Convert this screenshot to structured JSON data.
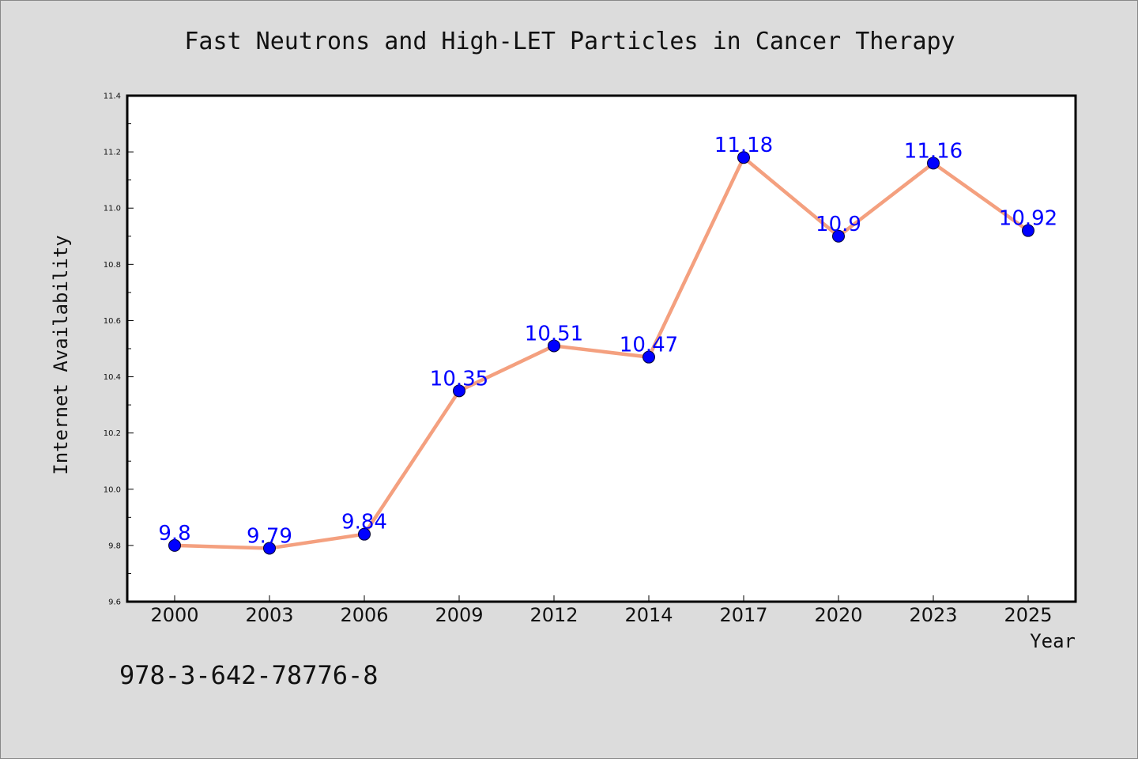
{
  "title": "Fast Neutrons and High-LET Particles in Cancer Therapy",
  "footnote": "978-3-642-78776-8",
  "chart_data": {
    "type": "line",
    "title": "Fast Neutrons and High-LET Particles in Cancer Therapy",
    "xlabel": "Year",
    "ylabel": "Internet Availability",
    "categories": [
      "2000",
      "2003",
      "2006",
      "2009",
      "2012",
      "2014",
      "2017",
      "2020",
      "2023",
      "2025"
    ],
    "series": [
      {
        "values": [
          9.8,
          9.79,
          9.84,
          10.35,
          10.51,
          10.47,
          11.18,
          10.9,
          11.16,
          10.92
        ],
        "data_labels": [
          "9.8",
          "9.79",
          "9.84",
          "10.35",
          "10.51",
          "10.47",
          "11.18",
          "10.9",
          "11.16",
          "10.92"
        ],
        "line_color": "#f4a07f",
        "marker_color": "#0000ff"
      }
    ],
    "ylim": [
      9.6,
      11.4
    ],
    "yticks": [
      "9.6",
      "9.8",
      "10.0",
      "10.2",
      "10.4",
      "10.6",
      "10.8",
      "11.0",
      "11.2",
      "11.4"
    ],
    "grid": false,
    "legend": "none",
    "background": "#dcdcdc",
    "plot_background": "#ffffff"
  }
}
